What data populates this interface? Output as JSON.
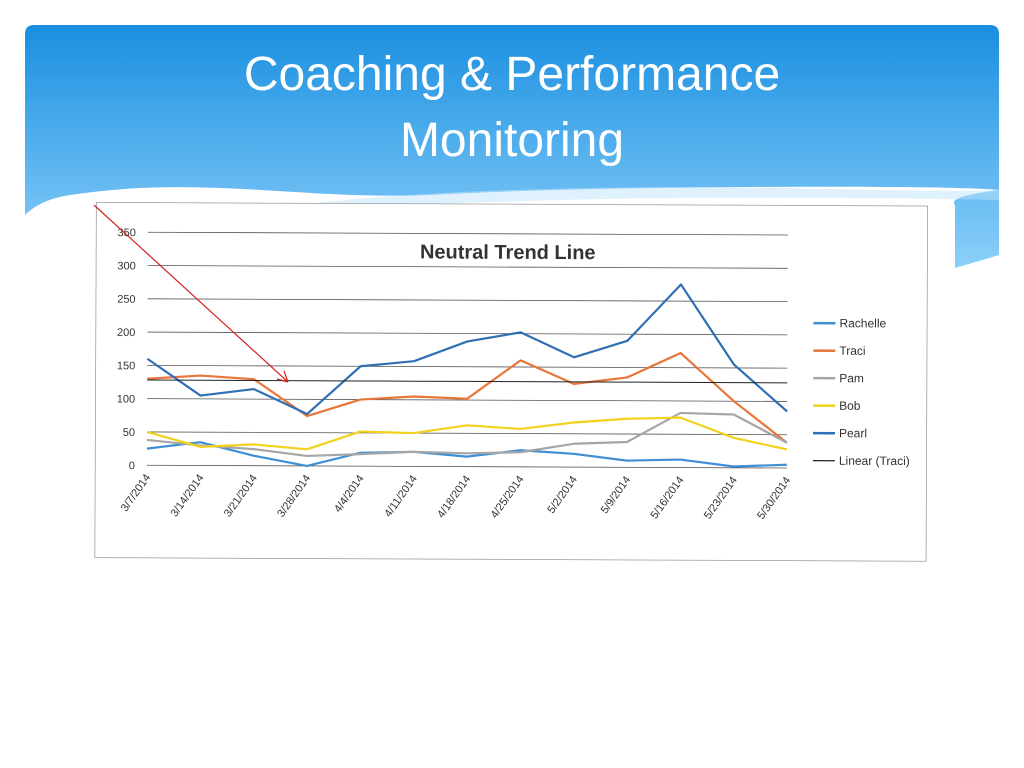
{
  "slide": {
    "title_line1": "Coaching & Performance",
    "title_line2": "Monitoring"
  },
  "colors": {
    "banner_top": "#1a8fe0",
    "banner_bottom": "#8cd0fa",
    "rachelle": "#3f8fd4",
    "traci": "#e8753a",
    "pam": "#a6a6a6",
    "bob": "#f2d21c",
    "pearl": "#2f6fb3",
    "linear_traci": "#222222",
    "annotation_arrow": "#d42020"
  },
  "chart_data": {
    "type": "line",
    "title": "Neutral Trend Line",
    "xlabel": "",
    "ylabel": "",
    "ylim": [
      0,
      350
    ],
    "yticks": [
      0,
      50,
      100,
      150,
      200,
      250,
      300,
      350
    ],
    "grid": true,
    "legend_position": "right",
    "categories": [
      "3/7/2014",
      "3/14/2014",
      "3/21/2014",
      "3/28/2014",
      "4/4/2014",
      "4/11/2014",
      "4/18/2014",
      "4/25/2014",
      "5/2/2014",
      "5/9/2014",
      "5/16/2014",
      "5/23/2014",
      "5/30/2014"
    ],
    "series": [
      {
        "name": "Rachelle",
        "values": [
          25,
          35,
          15,
          0,
          20,
          22,
          15,
          25,
          20,
          10,
          12,
          2,
          5
        ]
      },
      {
        "name": "Traci",
        "values": [
          130,
          135,
          130,
          75,
          100,
          105,
          102,
          160,
          125,
          135,
          172,
          100,
          38
        ]
      },
      {
        "name": "Pam",
        "values": [
          38,
          30,
          25,
          15,
          18,
          22,
          20,
          22,
          35,
          38,
          82,
          80,
          38
        ]
      },
      {
        "name": "Bob",
        "values": [
          50,
          28,
          32,
          25,
          52,
          50,
          62,
          57,
          67,
          73,
          75,
          45,
          28
        ]
      },
      {
        "name": "Pearl",
        "values": [
          160,
          105,
          115,
          78,
          150,
          158,
          188,
          202,
          165,
          190,
          275,
          155,
          85
        ]
      },
      {
        "name": "Linear (Traci)",
        "values": [
          128,
          128,
          128,
          128,
          128,
          128,
          128,
          128,
          128,
          128,
          128,
          128,
          128
        ]
      }
    ]
  }
}
